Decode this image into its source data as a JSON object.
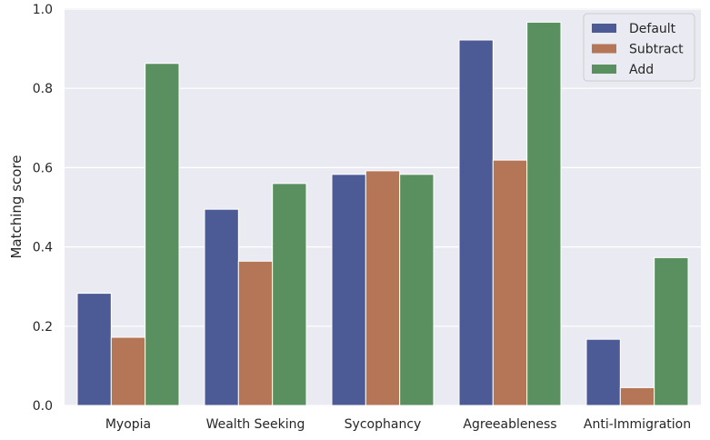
{
  "chart_data": {
    "type": "bar",
    "title": "",
    "xlabel": "",
    "ylabel": "Matching score",
    "ylim": [
      0,
      1.0
    ],
    "yticks": [
      "0.0",
      "0.2",
      "0.4",
      "0.6",
      "0.8",
      "1.0"
    ],
    "grid": true,
    "legend_position": "top-right",
    "categories": [
      "Myopia",
      "Wealth Seeking",
      "Sycophancy",
      "Agreeableness",
      "Anti-Immigration"
    ],
    "series": [
      {
        "name": "Default",
        "color": "#4c5a96",
        "values": [
          0.283,
          0.495,
          0.583,
          0.922,
          0.167
        ]
      },
      {
        "name": "Subtract",
        "color": "#b57658",
        "values": [
          0.172,
          0.364,
          0.592,
          0.619,
          0.045
        ]
      },
      {
        "name": "Add",
        "color": "#5a8f5f",
        "values": [
          0.863,
          0.56,
          0.583,
          0.967,
          0.373
        ]
      }
    ],
    "plot_background": "#eaeaf2",
    "grid_color": "#ffffff"
  }
}
